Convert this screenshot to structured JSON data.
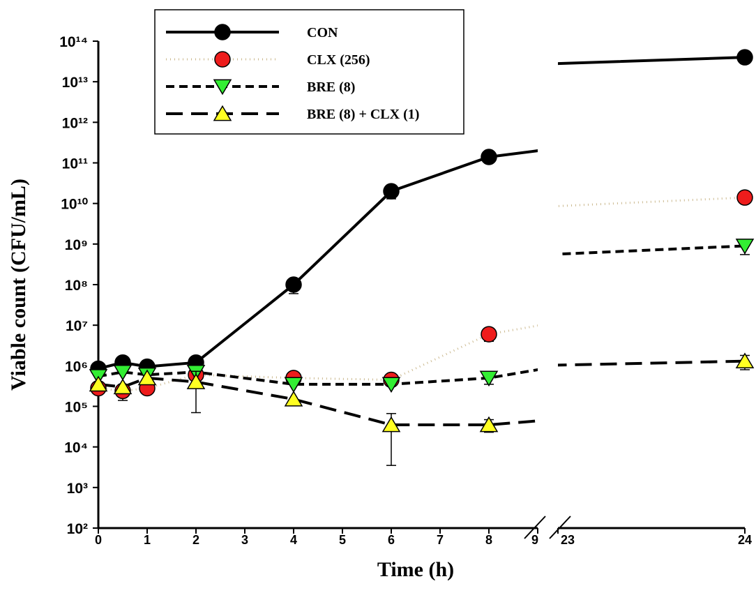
{
  "chart_data": {
    "type": "line",
    "x_label": "Time (h)",
    "y_label": "Viable count (CFU/mL)",
    "x": [
      0,
      0.5,
      1,
      2,
      4,
      6,
      8,
      24
    ],
    "xlim": [
      0,
      24
    ],
    "x_break": [
      9,
      23
    ],
    "xticks": [
      0,
      1,
      2,
      3,
      4,
      5,
      6,
      7,
      8,
      9,
      23,
      24
    ],
    "ylim": [
      100,
      100000000000000
    ],
    "log_y": true,
    "yticks": [
      {
        "value": 100,
        "label": "10²"
      },
      {
        "value": 1000,
        "label": "10³"
      },
      {
        "value": 10000,
        "label": "10⁴"
      },
      {
        "value": 100000,
        "label": "10⁵"
      },
      {
        "value": 1000000,
        "label": "10⁶"
      },
      {
        "value": 10000000,
        "label": "10⁷"
      },
      {
        "value": 100000000,
        "label": "10⁸"
      },
      {
        "value": 1000000000,
        "label": "10⁹"
      },
      {
        "value": 10000000000,
        "label": "10¹⁰"
      },
      {
        "value": 100000000000,
        "label": "10¹¹"
      },
      {
        "value": 1000000000000,
        "label": "10¹²"
      },
      {
        "value": 10000000000000,
        "label": "10¹³"
      },
      {
        "value": 100000000000000,
        "label": "10¹⁴"
      }
    ],
    "legend": "upper left",
    "series": [
      {
        "name": "CON",
        "color": "#000000",
        "line_color": "#000000",
        "line_style": "solid",
        "marker": "circle",
        "values": [
          850000,
          1200000,
          950000,
          1200000,
          100000000,
          20000000000,
          140000000000,
          40000000000000
        ],
        "errors": [
          null,
          null,
          null,
          null,
          40000000,
          7000000000,
          null,
          null
        ]
      },
      {
        "name": "CLX (256)",
        "color": "#ee1c1c",
        "line_color": "#cbb98f",
        "line_style": "dotted",
        "marker": "circle",
        "values": [
          280000,
          240000,
          280000,
          600000,
          500000,
          450000,
          6000000,
          14000000000
        ],
        "errors": [
          null,
          100000,
          80000,
          null,
          null,
          null,
          2000000,
          null
        ]
      },
      {
        "name": "BRE (8)",
        "color": "#33ee33",
        "line_color": "#000000",
        "line_style": "dashed",
        "marker": "triangle-down",
        "values": [
          550000,
          700000,
          600000,
          700000,
          350000,
          350000,
          500000,
          900000000
        ],
        "errors": [
          null,
          null,
          null,
          null,
          null,
          null,
          150000,
          350000000
        ]
      },
      {
        "name": "BRE (8) + CLX (1)",
        "color": "#ffff22",
        "line_color": "#000000",
        "line_style": "long-dashed",
        "marker": "triangle-up",
        "values": [
          350000,
          300000,
          500000,
          400000,
          150000,
          35000,
          35000,
          1300000
        ],
        "errors": [
          null,
          null,
          null,
          330000,
          null,
          31500,
          12000,
          500000
        ]
      }
    ]
  }
}
